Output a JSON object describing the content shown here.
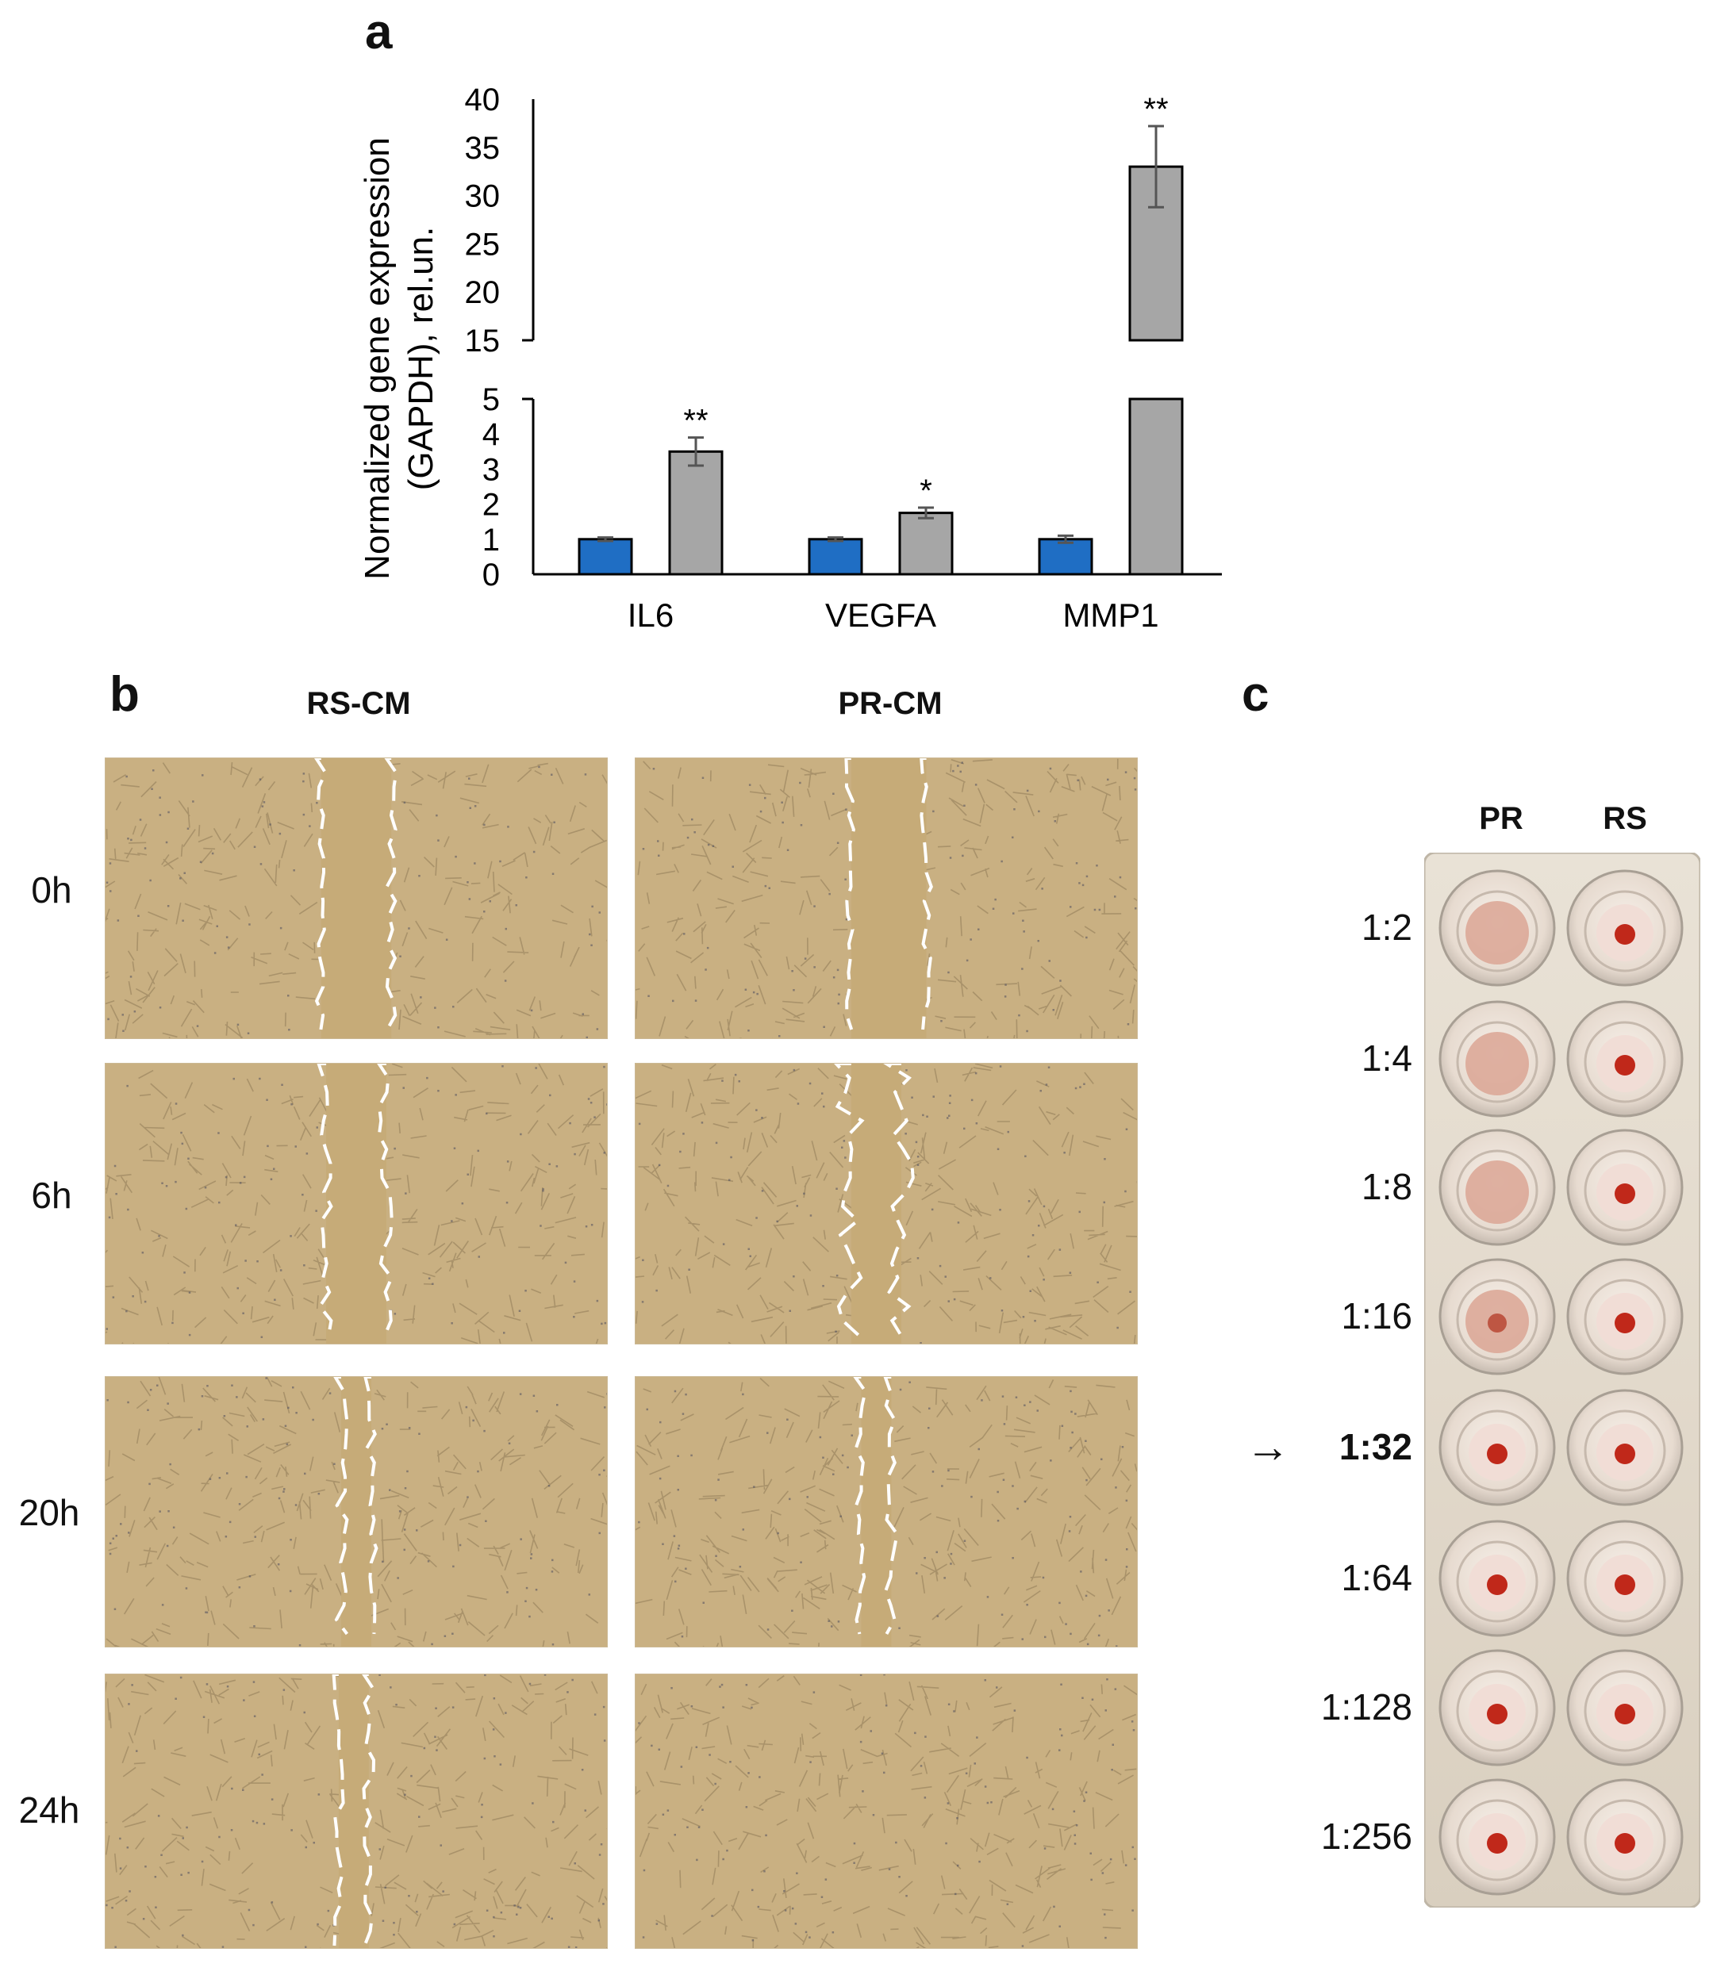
{
  "panels": {
    "a": "a",
    "b": "b",
    "c": "c"
  },
  "chart_data": {
    "type": "bar",
    "ylabel": [
      "Normalized gene expression",
      "(GAPDH), rel.un."
    ],
    "categories": [
      "IL6",
      "VEGFA",
      "MMP1"
    ],
    "axis_break": {
      "lower_ylim": [
        0,
        5
      ],
      "upper_ylim": [
        15,
        40
      ]
    },
    "lower_ticks": [
      "0",
      "1",
      "2",
      "3",
      "4",
      "5"
    ],
    "upper_ticks": [
      "15",
      "20",
      "25",
      "30",
      "35",
      "40"
    ],
    "series": [
      {
        "values": [
          1.0,
          1.0,
          1.0
        ],
        "errors": [
          0.05,
          0.05,
          0.1
        ],
        "color": "#1f6ec4"
      },
      {
        "values": [
          3.5,
          1.75,
          33.0
        ],
        "errors": [
          0.4,
          0.15,
          4.2
        ],
        "color": "#a6a6a6"
      }
    ],
    "significance": [
      "**",
      "*",
      "**"
    ]
  },
  "scratch": {
    "columns": [
      "RS-CM",
      "PR-CM"
    ],
    "rows": [
      "0h",
      "6h",
      "20h",
      "24h"
    ]
  },
  "plate": {
    "columns": [
      "PR",
      "RS"
    ],
    "dilutions": [
      "1:2",
      "1:4",
      "1:8",
      "1:16",
      "1:32",
      "1:64",
      "1:128",
      "1:256"
    ],
    "highlight_index": 4,
    "arrow": "→"
  }
}
